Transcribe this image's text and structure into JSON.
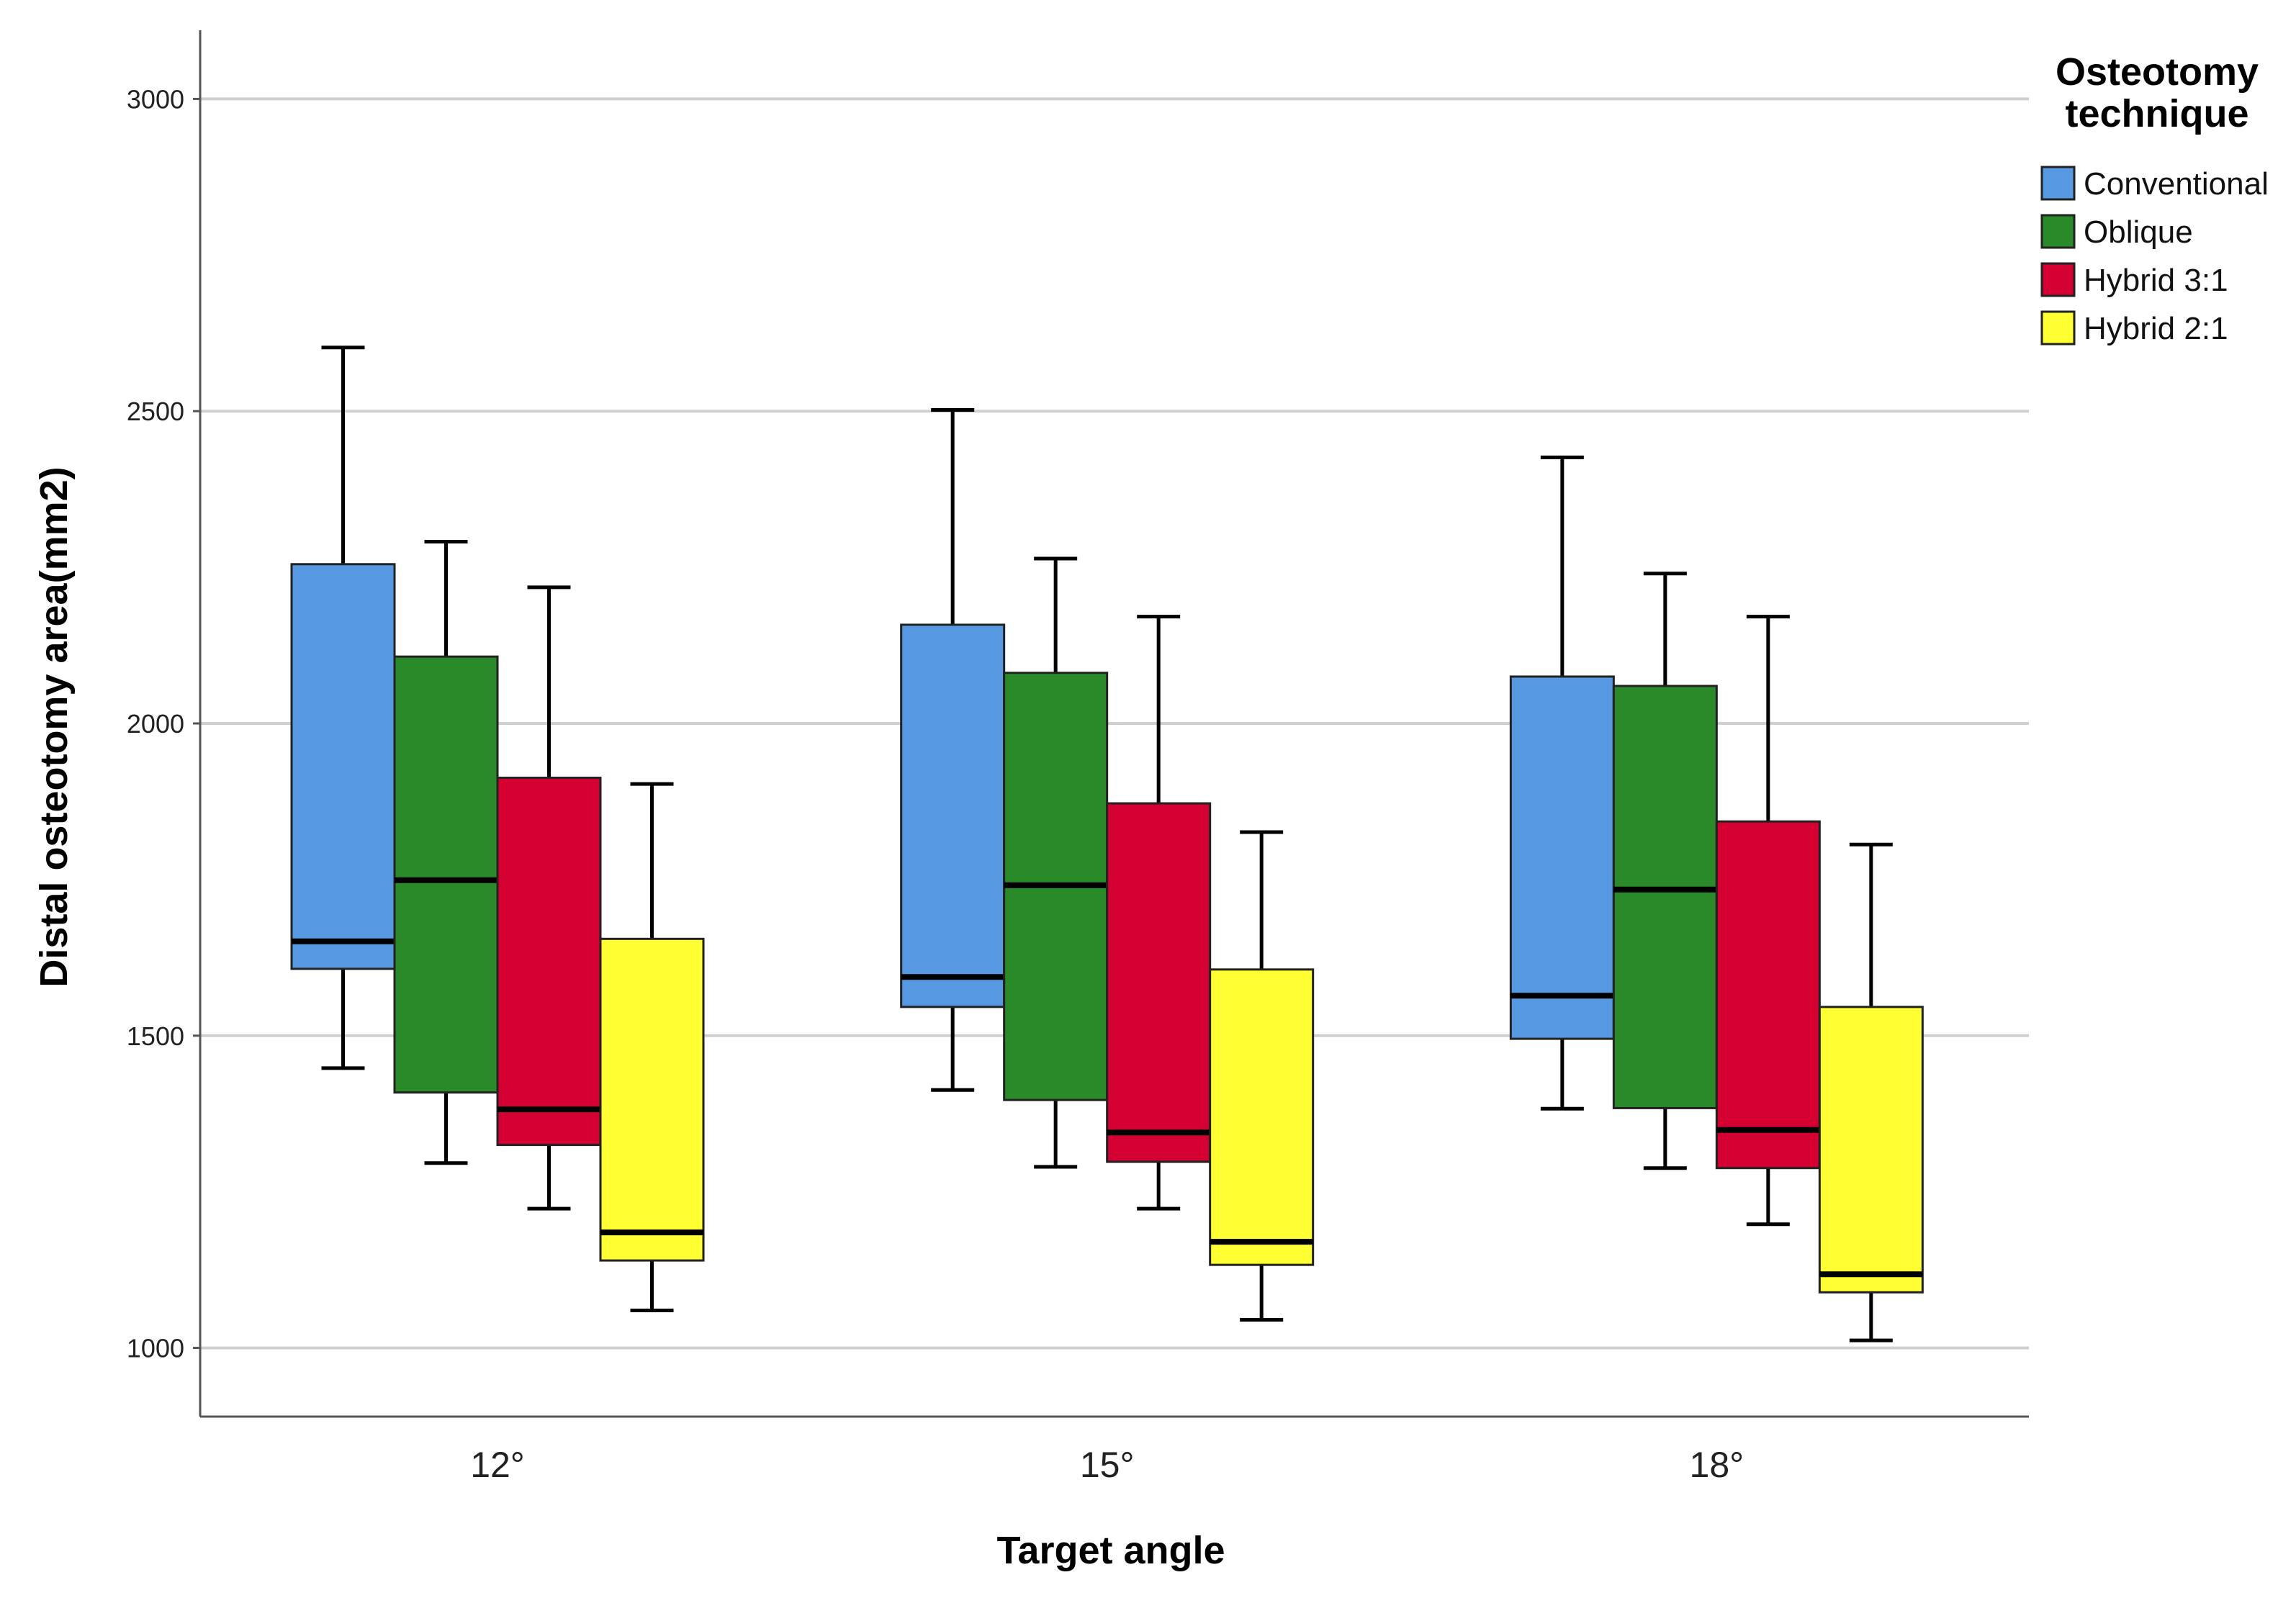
{
  "chart_data": {
    "type": "box",
    "title": "",
    "xlabel": "Target angle",
    "ylabel": "Distal osteotomy area(mm2)",
    "ylim": [
      890,
      3110
    ],
    "yticks": [
      1000,
      1500,
      2000,
      2500,
      3000
    ],
    "grid": true,
    "legend": {
      "title_lines": [
        "Osteotomy",
        "technique"
      ],
      "placement": "right"
    },
    "categories": [
      "12°",
      "15°",
      "18°"
    ],
    "series": [
      {
        "name": "Conventional",
        "color": "#5699E2",
        "boxes": [
          {
            "min": 1448,
            "q1": 1607,
            "median": 1651,
            "q3": 2255,
            "max": 2602
          },
          {
            "min": 1413,
            "q1": 1546,
            "median": 1594,
            "q3": 2158,
            "max": 2502
          },
          {
            "min": 1383,
            "q1": 1495,
            "median": 1564,
            "q3": 2075,
            "max": 2426
          }
        ]
      },
      {
        "name": "Oblique",
        "color": "#2A8A2A",
        "boxes": [
          {
            "min": 1296,
            "q1": 1409,
            "median": 1749,
            "q3": 2107,
            "max": 2291
          },
          {
            "min": 1290,
            "q1": 1397,
            "median": 1741,
            "q3": 2081,
            "max": 2264
          },
          {
            "min": 1288,
            "q1": 1384,
            "median": 1734,
            "q3": 2060,
            "max": 2240
          }
        ]
      },
      {
        "name": "Hybrid 3:1",
        "color": "#D50032",
        "boxes": [
          {
            "min": 1223,
            "q1": 1325,
            "median": 1382,
            "q3": 1913,
            "max": 2218
          },
          {
            "min": 1223,
            "q1": 1298,
            "median": 1345,
            "q3": 1872,
            "max": 2171
          },
          {
            "min": 1198,
            "q1": 1288,
            "median": 1349,
            "q3": 1843,
            "max": 2171
          }
        ]
      },
      {
        "name": "Hybrid 2:1",
        "color": "#FFFF33",
        "boxes": [
          {
            "min": 1060,
            "q1": 1140,
            "median": 1185,
            "q3": 1655,
            "max": 1903
          },
          {
            "min": 1045,
            "q1": 1133,
            "median": 1170,
            "q3": 1606,
            "max": 1826
          },
          {
            "min": 1012,
            "q1": 1089,
            "median": 1118,
            "q3": 1546,
            "max": 1806
          }
        ]
      }
    ]
  }
}
